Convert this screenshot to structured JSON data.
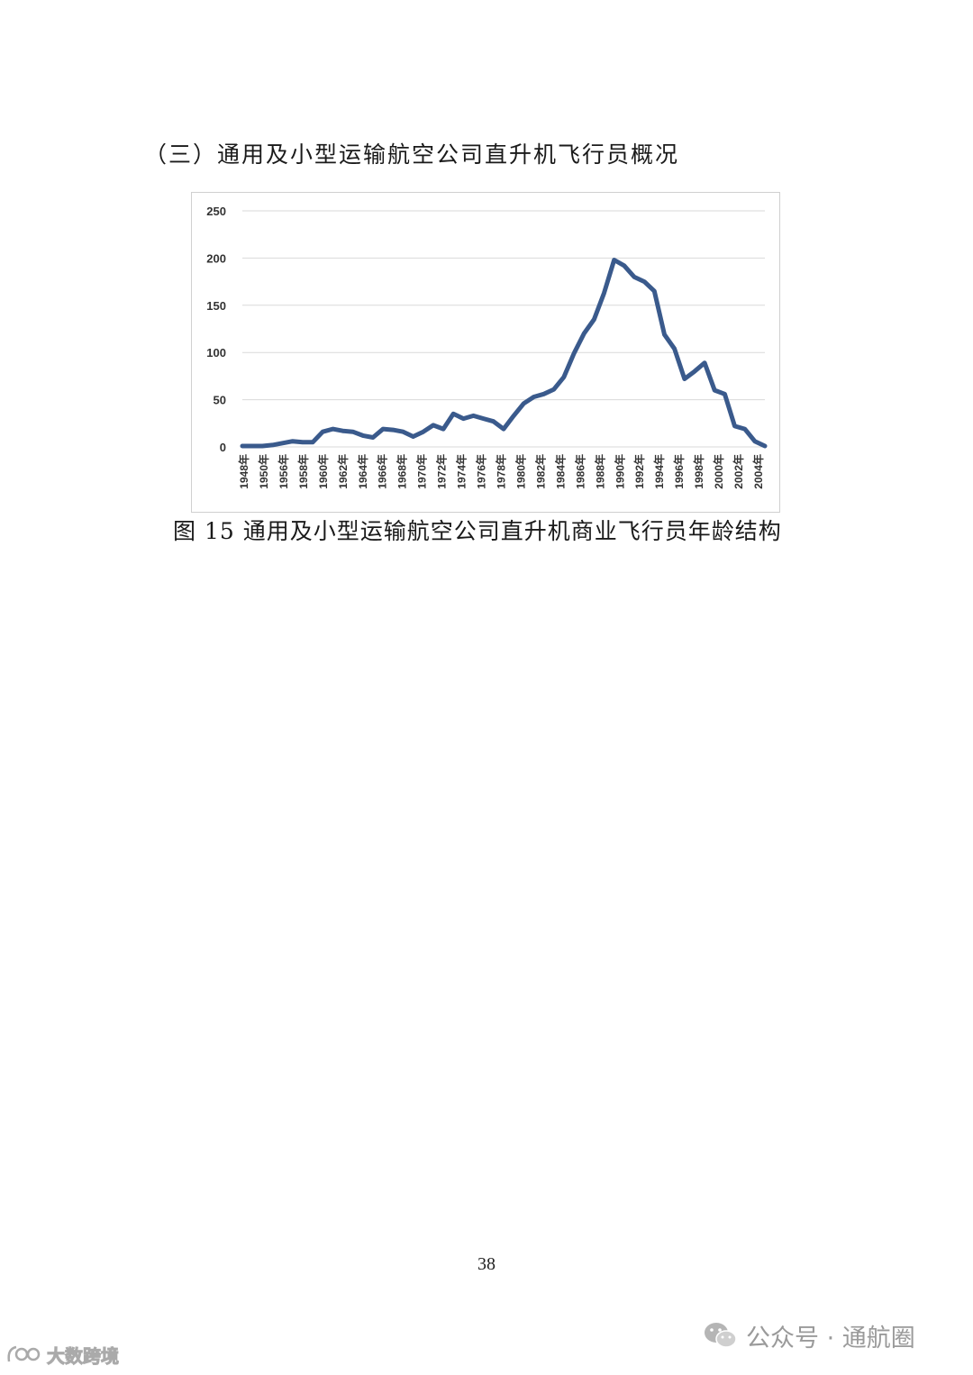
{
  "heading": "（三）通用及小型运输航空公司直升机飞行员概况",
  "caption": "图 15  通用及小型运输航空公司直升机商业飞行员年龄结构",
  "page_number": "38",
  "watermark_right": "公众号 · 通航圈",
  "watermark_left": "大数跨境",
  "colors": {
    "line": "#3a5a8c",
    "grid": "#d9d9d9"
  },
  "chart_data": {
    "type": "line",
    "title": "",
    "xlabel": "",
    "ylabel": "",
    "ylim": [
      0,
      250
    ],
    "yticks": [
      0,
      50,
      100,
      150,
      200,
      250
    ],
    "xtick_labels": [
      "1948年",
      "1950年",
      "1956年",
      "1958年",
      "1960年",
      "1962年",
      "1964年",
      "1966年",
      "1968年",
      "1970年",
      "1972年",
      "1974年",
      "1976年",
      "1978年",
      "1980年",
      "1982年",
      "1984年",
      "1986年",
      "1988年",
      "1990年",
      "1992年",
      "1994年",
      "1996年",
      "1998年",
      "2000年",
      "2002年",
      "2004年"
    ],
    "grid": true,
    "legend": "none",
    "series": [
      {
        "values": [
          1,
          1,
          1,
          2,
          4,
          6,
          5,
          5,
          16,
          19,
          17,
          16,
          12,
          10,
          19,
          18,
          16,
          11,
          16,
          23,
          19,
          35,
          30,
          33,
          30,
          27,
          19,
          33,
          46,
          53,
          56,
          61,
          74,
          99,
          120,
          135,
          163,
          198,
          192,
          180,
          175,
          165,
          119,
          104,
          72,
          80,
          89,
          60,
          56,
          22,
          19,
          6,
          1
        ]
      }
    ]
  }
}
